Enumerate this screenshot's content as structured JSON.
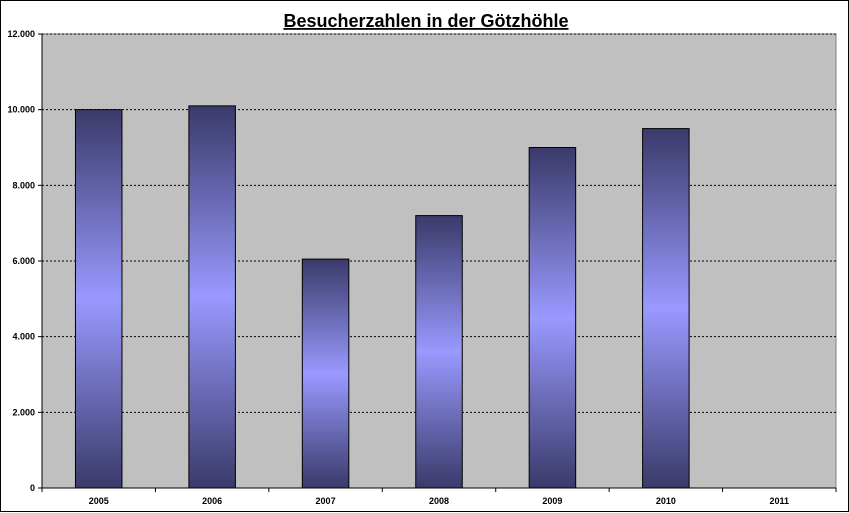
{
  "chart_data": {
    "type": "bar",
    "title": "Besucherzahlen in der Götzhöhle",
    "xlabel": "",
    "ylabel": "",
    "categories": [
      "2005",
      "2006",
      "2007",
      "2008",
      "2009",
      "2010",
      "2011"
    ],
    "values": [
      10000,
      10100,
      6050,
      7200,
      9000,
      9500,
      null
    ],
    "ylim": [
      0,
      12000
    ],
    "yticks": [
      0,
      2000,
      4000,
      6000,
      8000,
      10000,
      12000
    ],
    "ytick_labels": [
      "0",
      "2.000",
      "4.000",
      "6.000",
      "8.000",
      "10.000",
      "12.000"
    ],
    "grid": true,
    "grid_style": "dotted",
    "legend": "none",
    "colors": {
      "plot_background": "#c0c0c0",
      "bar_edge": "#3a3a6a",
      "bar_center": "#9999ff",
      "gridline": "#000000"
    }
  }
}
